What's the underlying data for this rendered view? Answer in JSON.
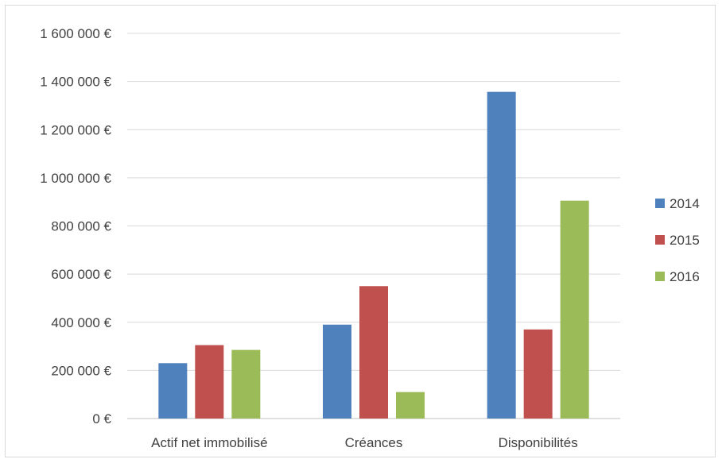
{
  "chart_data": {
    "type": "bar",
    "title": "",
    "xlabel": "",
    "ylabel": "",
    "categories": [
      "Actif net immobilisé",
      "Créances",
      "Disponibilités"
    ],
    "series": [
      {
        "name": "2014",
        "color": "#4f81bd",
        "values": [
          230000,
          390000,
          1357000
        ]
      },
      {
        "name": "2015",
        "color": "#c0504d",
        "values": [
          305000,
          550000,
          370000
        ]
      },
      {
        "name": "2016",
        "color": "#9bbb59",
        "values": [
          285000,
          110000,
          905000
        ]
      }
    ],
    "ylim": [
      0,
      1600000
    ],
    "yticks": [
      0,
      200000,
      400000,
      600000,
      800000,
      1000000,
      1200000,
      1400000,
      1600000
    ],
    "ytick_labels": [
      "0 €",
      "200 000 €",
      "400 000 €",
      "600 000 €",
      "800 000 €",
      "1 000 000 €",
      "1 200 000 €",
      "1 400 000 €",
      "1 600 000 €"
    ],
    "grid": true,
    "legend": "right"
  }
}
